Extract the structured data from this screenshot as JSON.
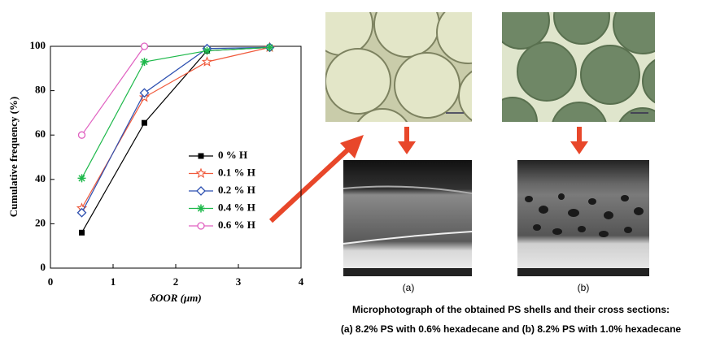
{
  "chart_data": {
    "type": "line",
    "ylabel": "Cumulative frequency (%)",
    "xlabel": "δOOR (μm)",
    "x": [
      0.5,
      1.5,
      2.5,
      3.5
    ],
    "xlim": [
      0,
      4
    ],
    "xticks": [
      0,
      1,
      2,
      3,
      4
    ],
    "ylim": [
      0,
      100
    ],
    "yticks": [
      0,
      20,
      40,
      60,
      80,
      100
    ],
    "series": [
      {
        "name": "0 % H",
        "color": "#000000",
        "marker": "square",
        "values": [
          16,
          65.5,
          98,
          99.5
        ]
      },
      {
        "name": "0.1 % H",
        "color": "#f05a3c",
        "marker": "star",
        "values": [
          27,
          77,
          93,
          99.5
        ]
      },
      {
        "name": "0.2 % H",
        "color": "#2c4fb0",
        "marker": "diamond",
        "values": [
          25,
          79,
          99,
          99.5
        ]
      },
      {
        "name": "0.4 % H",
        "color": "#1db84a",
        "marker": "asterisk",
        "values": [
          40.5,
          93,
          98,
          99.5
        ]
      },
      {
        "name": "0.6 % H",
        "color": "#e060c0",
        "marker": "circle",
        "values": [
          60,
          100,
          null,
          null
        ]
      }
    ]
  },
  "figure": {
    "panel_labels": [
      "(a)",
      "(b)"
    ],
    "caption": [
      "Microphotograph of the obtained PS shells and their cross sections:",
      "(a) 8.2% PS with 0.6% hexadecane and (b) 8.2% PS with 1.0% hexadecane"
    ]
  }
}
